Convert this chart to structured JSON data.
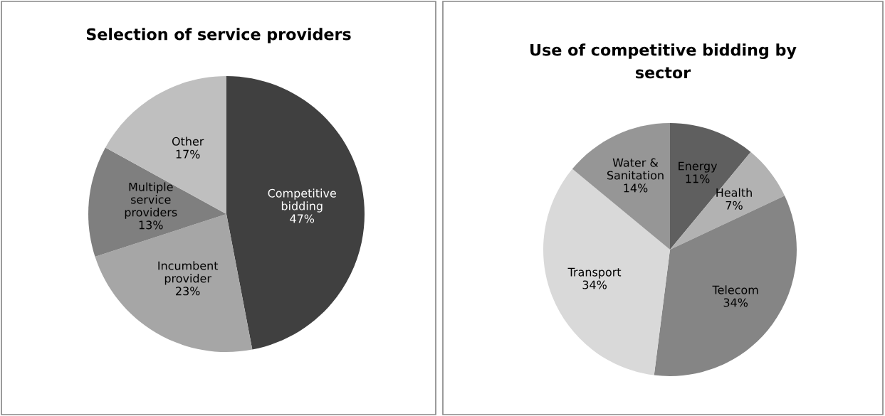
{
  "chart_data": [
    {
      "type": "pie",
      "title": "Selection of service providers",
      "categories": [
        "Competitive\nbidding",
        "Incumbent\nprovider",
        "Multiple\nservice\nproviders",
        "Other"
      ],
      "values": [
        47,
        23,
        13,
        17
      ],
      "value_labels": [
        "47%",
        "23%",
        "13%",
        "17%"
      ],
      "colors": [
        "#404040",
        "#a6a6a6",
        "#7f7f7f",
        "#bfbfbf"
      ]
    },
    {
      "type": "pie",
      "title": "Use of competitive bidding by\nsector",
      "categories": [
        "Energy",
        "Health",
        "Telecom",
        "Transport",
        "Water &\nSanitation"
      ],
      "values": [
        11,
        7,
        34,
        34,
        14
      ],
      "value_labels": [
        "11%",
        "7%",
        "34%",
        "34%",
        "14%"
      ],
      "colors": [
        "#5f5f5f",
        "#b2b2b2",
        "#858585",
        "#d9d9d9",
        "#969696"
      ]
    }
  ]
}
